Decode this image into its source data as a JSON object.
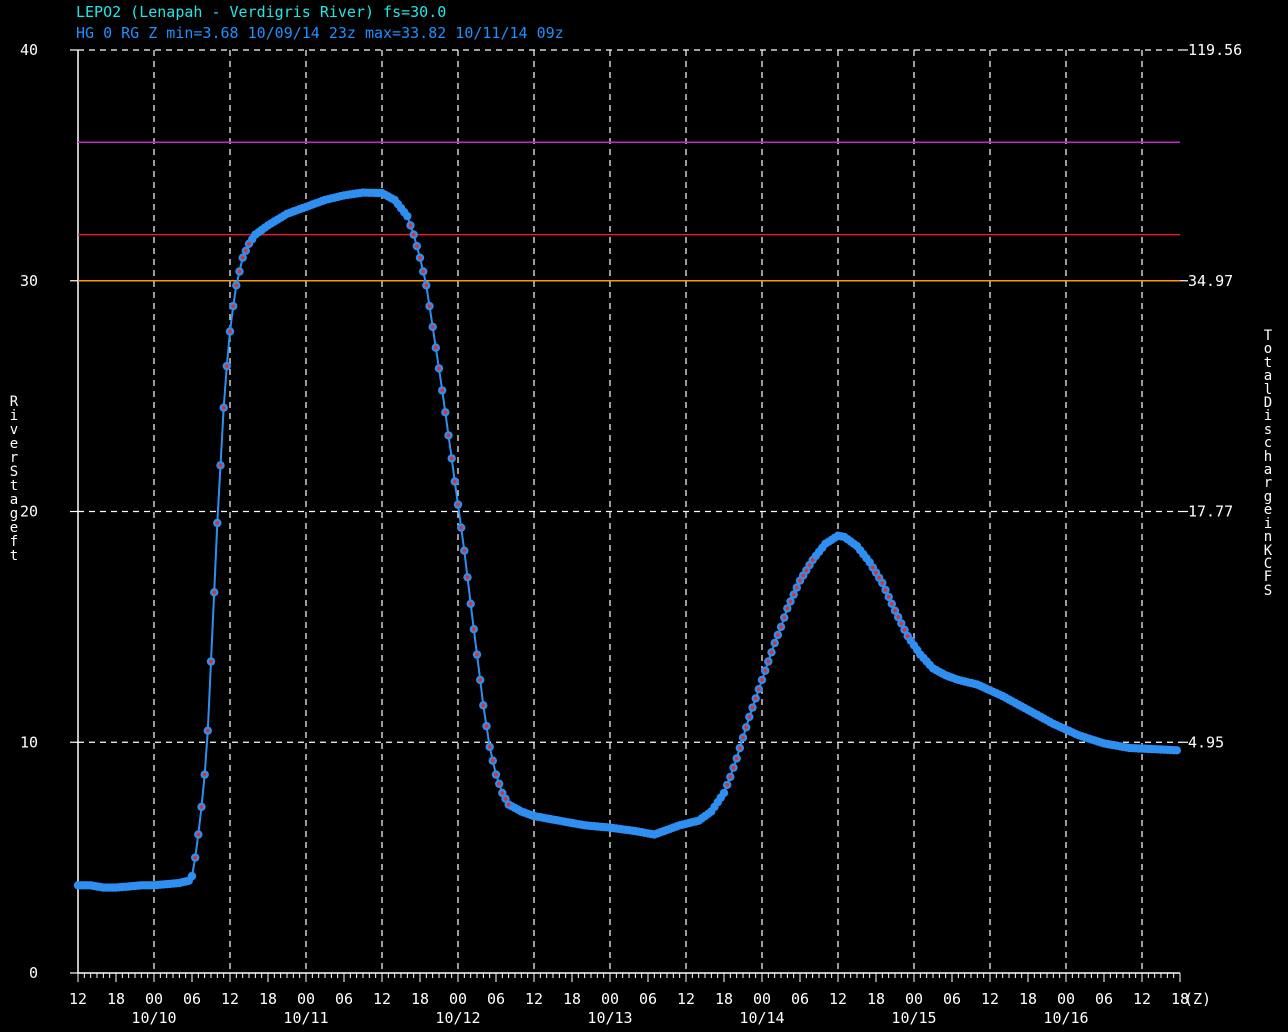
{
  "header": {
    "station_line": "LEPO2 (Lenapah - Verdigris River) fs=30.0",
    "stats_line": "HG 0 RG Z min=3.68 10/09/14 23z max=33.82 10/11/14 09z"
  },
  "colors": {
    "background": "#000000",
    "title_station": "#22e6e6",
    "title_stats": "#1e90ff",
    "series": "#2f8ff0",
    "marker": "#e03030",
    "grid": "#ffffff",
    "threshold_magenta": "#cc22cc",
    "threshold_red": "#e02020",
    "threshold_orange": "#ff9900"
  },
  "chart_data": {
    "type": "line",
    "ylabel": "River Stage ft",
    "ylabel_right": "Total Discharge in KCFS",
    "ylim": [
      0,
      40
    ],
    "y_ticks": [
      "0",
      "10",
      "20",
      "30",
      "40"
    ],
    "right_ticks": [
      {
        "stage": 10,
        "label": "4.95"
      },
      {
        "stage": 20,
        "label": "17.77"
      },
      {
        "stage": 30,
        "label": "34.97"
      },
      {
        "stage": 40,
        "label": "119.56"
      }
    ],
    "x_unit_label": "(Z)",
    "x_hours_range": [
      -12,
      162
    ],
    "x_tick_labels": [
      "12",
      "18",
      "00",
      "06",
      "12",
      "18",
      "00",
      "06",
      "12",
      "18",
      "00",
      "06",
      "12",
      "18",
      "00",
      "06",
      "12",
      "18",
      "00",
      "06",
      "12",
      "18",
      "00",
      "06",
      "12",
      "18",
      "00",
      "06",
      "12",
      "18"
    ],
    "date_labels": [
      "10/10",
      "10/11",
      "10/12",
      "10/13",
      "10/14",
      "10/15",
      "10/16"
    ],
    "grid": true,
    "thresholds": [
      {
        "value": 36,
        "color": "#cc22cc"
      },
      {
        "value": 32,
        "color": "#e02020"
      },
      {
        "value": 30,
        "color": "#ff9900"
      }
    ],
    "series": [
      {
        "points": [
          [
            -12,
            3.8
          ],
          [
            -10,
            3.8
          ],
          [
            -8,
            3.7
          ],
          [
            -6,
            3.7
          ],
          [
            -4,
            3.75
          ],
          [
            -2,
            3.8
          ],
          [
            0,
            3.8
          ],
          [
            2,
            3.85
          ],
          [
            4,
            3.9
          ],
          [
            5.5,
            4.0
          ],
          [
            6,
            4.2
          ],
          [
            6.5,
            5.0
          ],
          [
            7,
            6.0
          ],
          [
            7.5,
            7.2
          ],
          [
            8,
            8.6
          ],
          [
            8.5,
            10.5
          ],
          [
            9,
            13.5
          ],
          [
            9.5,
            16.5
          ],
          [
            10,
            19.5
          ],
          [
            10.5,
            22.0
          ],
          [
            11,
            24.5
          ],
          [
            11.5,
            26.3
          ],
          [
            12,
            27.8
          ],
          [
            12.5,
            28.9
          ],
          [
            13,
            29.8
          ],
          [
            14,
            31.0
          ],
          [
            15,
            31.6
          ],
          [
            16,
            32.0
          ],
          [
            18,
            32.4
          ],
          [
            21,
            32.9
          ],
          [
            24,
            33.2
          ],
          [
            27,
            33.5
          ],
          [
            30,
            33.7
          ],
          [
            33,
            33.82
          ],
          [
            36,
            33.8
          ],
          [
            38,
            33.5
          ],
          [
            40,
            32.8
          ],
          [
            41,
            32.0
          ],
          [
            42,
            31.0
          ],
          [
            43,
            29.8
          ],
          [
            44,
            28.0
          ],
          [
            45,
            26.2
          ],
          [
            46,
            24.3
          ],
          [
            47,
            22.3
          ],
          [
            48,
            20.3
          ],
          [
            49,
            18.3
          ],
          [
            50,
            16.0
          ],
          [
            51,
            13.8
          ],
          [
            52,
            11.6
          ],
          [
            53,
            9.8
          ],
          [
            54,
            8.6
          ],
          [
            55,
            7.8
          ],
          [
            56,
            7.3
          ],
          [
            58,
            7.0
          ],
          [
            60,
            6.8
          ],
          [
            64,
            6.6
          ],
          [
            68,
            6.4
          ],
          [
            72,
            6.3
          ],
          [
            76,
            6.15
          ],
          [
            79,
            6.0
          ],
          [
            81,
            6.2
          ],
          [
            83,
            6.4
          ],
          [
            86,
            6.6
          ],
          [
            88,
            7.0
          ],
          [
            90,
            7.8
          ],
          [
            91,
            8.5
          ],
          [
            92,
            9.3
          ],
          [
            93,
            10.2
          ],
          [
            94,
            11.1
          ],
          [
            95,
            11.9
          ],
          [
            96,
            12.7
          ],
          [
            97,
            13.5
          ],
          [
            98,
            14.3
          ],
          [
            99,
            15.0
          ],
          [
            100,
            15.8
          ],
          [
            102,
            17.0
          ],
          [
            104,
            17.9
          ],
          [
            106,
            18.6
          ],
          [
            108,
            18.95
          ],
          [
            109,
            18.9
          ],
          [
            111,
            18.5
          ],
          [
            113,
            17.8
          ],
          [
            115,
            16.9
          ],
          [
            117,
            15.7
          ],
          [
            119,
            14.6
          ],
          [
            121,
            13.8
          ],
          [
            123,
            13.2
          ],
          [
            125,
            12.9
          ],
          [
            127,
            12.7
          ],
          [
            130,
            12.5
          ],
          [
            134,
            12.0
          ],
          [
            138,
            11.4
          ],
          [
            142,
            10.8
          ],
          [
            146,
            10.3
          ],
          [
            150,
            9.95
          ],
          [
            154,
            9.75
          ],
          [
            158,
            9.7
          ],
          [
            161.5,
            9.65
          ]
        ]
      }
    ]
  }
}
